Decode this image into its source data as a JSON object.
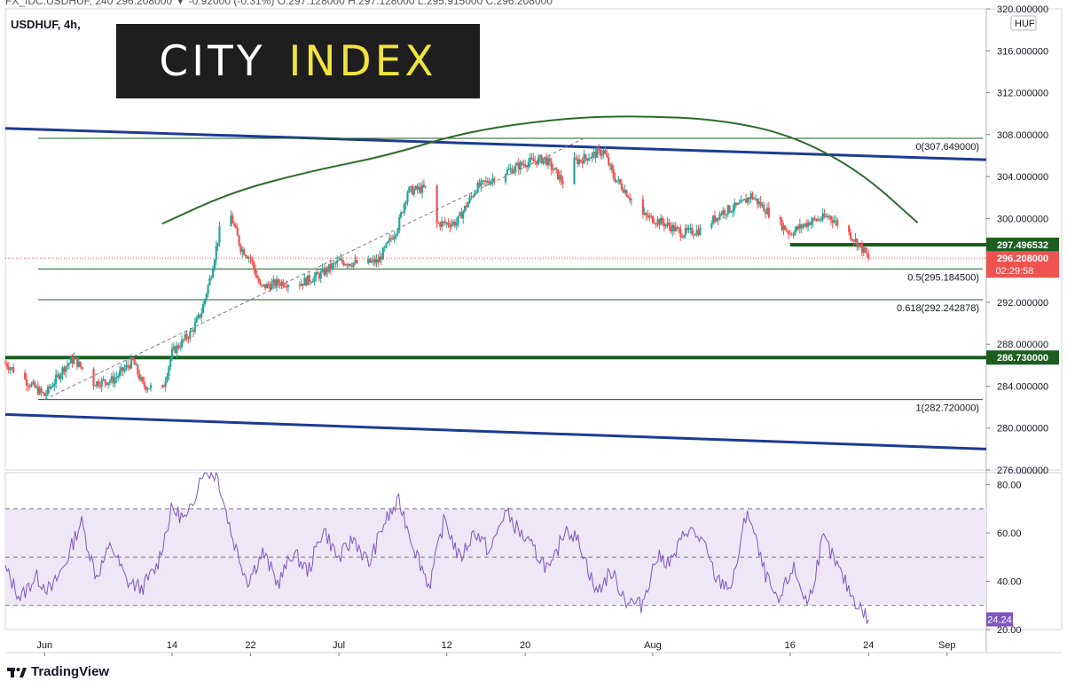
{
  "header": {
    "ticker_line": "FX_IDC:USDHUF, 240 296.208000 ▼ -0.92000 (-0.31%) O:297.128000 H:297.128000 L:295.915000 C:296.208000",
    "symbol": "USDHUF, 4h,"
  },
  "logo": {
    "word1": "CITY",
    "word2": "INDEX"
  },
  "footer": {
    "brand": "TradingView"
  },
  "colors": {
    "up": "#26a69a",
    "down": "#ef5350",
    "channel": "#1f3a93",
    "level": "#1b5e20",
    "arc": "#2e6b2e",
    "rsi": "#7e57c2",
    "rsi_band": "#ede7f6",
    "price_tag": "#ef5350"
  },
  "chart_data": [
    {
      "type": "candlestick",
      "title": "",
      "currency_badge": "HUF",
      "xlim": [
        "2021-05-28",
        "2021-09-05"
      ],
      "ylim": [
        276,
        320
      ],
      "y_ticks": [
        "276.000000",
        "280.000000",
        "284.000000",
        "288.000000",
        "292.000000",
        "296.000000",
        "300.000000",
        "304.000000",
        "308.000000",
        "312.000000",
        "316.000000",
        "320.000000"
      ],
      "x_tick_labels": [
        {
          "date": "2021-06-01",
          "label": "Jun"
        },
        {
          "date": "2021-06-14",
          "label": "14"
        },
        {
          "date": "2021-06-22",
          "label": "22"
        },
        {
          "date": "2021-07-01",
          "label": "Jul"
        },
        {
          "date": "2021-07-12",
          "label": "12"
        },
        {
          "date": "2021-07-20",
          "label": "20"
        },
        {
          "date": "2021-08-02",
          "label": "Aug"
        },
        {
          "date": "2021-08-16",
          "label": "16"
        },
        {
          "date": "2021-08-24",
          "label": "24"
        },
        {
          "date": "2021-09-01",
          "label": "Sep"
        }
      ],
      "close_path": [
        [
          "2021-05-28",
          286.2
        ],
        [
          "2021-05-30",
          284.6
        ],
        [
          "2021-06-01",
          283.1
        ],
        [
          "2021-06-03",
          285.8
        ],
        [
          "2021-06-04",
          286.6
        ],
        [
          "2021-06-06",
          284.3
        ],
        [
          "2021-06-08",
          284.6
        ],
        [
          "2021-06-10",
          286.4
        ],
        [
          "2021-06-11",
          284.1
        ],
        [
          "2021-06-13",
          283.6
        ],
        [
          "2021-06-14",
          287.2
        ],
        [
          "2021-06-16",
          289.2
        ],
        [
          "2021-06-17",
          291.1
        ],
        [
          "2021-06-18",
          294.8
        ],
        [
          "2021-06-19",
          299.6
        ],
        [
          "2021-06-20",
          300.2
        ],
        [
          "2021-06-21",
          297.2
        ],
        [
          "2021-06-22",
          296.2
        ],
        [
          "2021-06-23",
          293.4
        ],
        [
          "2021-06-25",
          293.9
        ],
        [
          "2021-06-27",
          293.8
        ],
        [
          "2021-06-29",
          294.6
        ],
        [
          "2021-07-01",
          295.9
        ],
        [
          "2021-07-03",
          295.7
        ],
        [
          "2021-07-05",
          295.9
        ],
        [
          "2021-07-07",
          299.2
        ],
        [
          "2021-07-08",
          302.6
        ],
        [
          "2021-07-10",
          302.9
        ],
        [
          "2021-07-11",
          299.5
        ],
        [
          "2021-07-13",
          299.6
        ],
        [
          "2021-07-15",
          302.9
        ],
        [
          "2021-07-17",
          304.0
        ],
        [
          "2021-07-20",
          305.3
        ],
        [
          "2021-07-22",
          305.7
        ],
        [
          "2021-07-24",
          303.3
        ],
        [
          "2021-07-25",
          305.4
        ],
        [
          "2021-07-27",
          306.1
        ],
        [
          "2021-07-28",
          306.4
        ],
        [
          "2021-07-29",
          304.0
        ],
        [
          "2021-07-30",
          302.9
        ],
        [
          "2021-08-01",
          300.3
        ],
        [
          "2021-08-03",
          299.6
        ],
        [
          "2021-08-05",
          298.6
        ],
        [
          "2021-08-07",
          298.9
        ],
        [
          "2021-08-09",
          300.6
        ],
        [
          "2021-08-11",
          301.3
        ],
        [
          "2021-08-12",
          302.2
        ],
        [
          "2021-08-14",
          300.4
        ],
        [
          "2021-08-16",
          298.6
        ],
        [
          "2021-08-18",
          299.7
        ],
        [
          "2021-08-20",
          300.2
        ],
        [
          "2021-08-22",
          298.6
        ],
        [
          "2021-08-23",
          297.5
        ],
        [
          "2021-08-24",
          296.2
        ]
      ],
      "annotations": {
        "fib_levels": [
          {
            "label": "0(307.649000)",
            "value": 307.649
          },
          {
            "label": "0.5(295.184500)",
            "value": 295.1845
          },
          {
            "label": "0.618(292.242878)",
            "value": 292.242878
          },
          {
            "label": "1(282.720000)",
            "value": 282.72
          }
        ],
        "support_levels": [
          {
            "label": "297.496532",
            "value": 297.496532,
            "from": "2021-08-16"
          },
          {
            "label": "286.730000",
            "value": 286.73,
            "from": "2021-05-28"
          }
        ],
        "channel_upper": [
          [
            "2021-05-28",
            308.6
          ],
          [
            "2021-09-05",
            305.6
          ]
        ],
        "channel_lower": [
          [
            "2021-05-28",
            281.3
          ],
          [
            "2021-09-05",
            278.0
          ]
        ],
        "arc": [
          [
            "2021-06-13",
            299.5
          ],
          [
            "2021-06-20",
            302.5
          ],
          [
            "2021-06-28",
            304.5
          ],
          [
            "2021-07-06",
            306.0
          ],
          [
            "2021-07-14",
            308.3
          ],
          [
            "2021-07-24",
            309.6
          ],
          [
            "2021-08-01",
            309.8
          ],
          [
            "2021-08-09",
            309.4
          ],
          [
            "2021-08-16",
            308.0
          ],
          [
            "2021-08-23",
            304.6
          ],
          [
            "2021-08-29",
            299.6
          ]
        ],
        "last_price": {
          "label": "296.208000",
          "value": 296.208
        },
        "countdown": "02:29:58"
      }
    },
    {
      "type": "line",
      "title": "",
      "series": [
        {
          "values": [
            45,
            33,
            42,
            36,
            48,
            65,
            42,
            55,
            40,
            37,
            46,
            70,
            65,
            86,
            84,
            58,
            40,
            52,
            39,
            52,
            44,
            62,
            49,
            58,
            47,
            64,
            73,
            54,
            38,
            66,
            49,
            61,
            52,
            69,
            60,
            52,
            44,
            63,
            55,
            35,
            44,
            32,
            30,
            50,
            48,
            62,
            57,
            40,
            38,
            70,
            46,
            30,
            46,
            30,
            58,
            45,
            33,
            24
          ]
        }
      ],
      "ylim": [
        20,
        85
      ],
      "y_ticks": [
        "20.00",
        "40.00",
        "60.00",
        "80.00"
      ],
      "bands": [
        30,
        50,
        70
      ],
      "last_value": {
        "label": "24.24",
        "value": 24.24
      }
    }
  ]
}
